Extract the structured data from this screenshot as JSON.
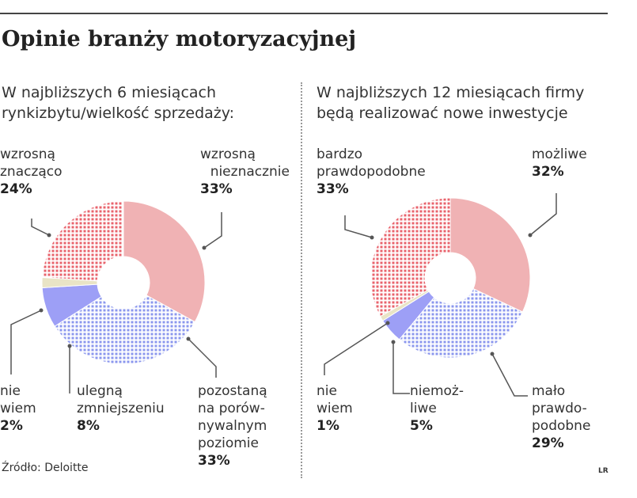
{
  "title": "Opinie branży motoryzacyjnej",
  "source": "Źródło: Deloitte",
  "credit": "LR",
  "colors": {
    "red": "#ee7b82",
    "pink": "#f0b2b4",
    "blue": "#9aa6f0",
    "blueSolid": "#9d9ff6",
    "cream": "#e9e4c6",
    "leader": "#555555"
  },
  "chart_data": [
    {
      "type": "pie",
      "subtitle": [
        "W najbliższych 6 miesiącach",
        "rynkizbytu/wielkość sprzedaży:"
      ],
      "labels": [
        {
          "lines": [
            "wzrosną",
            "znacząco"
          ],
          "value_label": "24%"
        },
        {
          "lines": [
            "wzrosną",
            "nieznacznie"
          ],
          "value_label": "33%"
        },
        {
          "lines": [
            "pozostaną",
            "na porów-",
            "nywalnym",
            "poziomie"
          ],
          "value_label": "33%"
        },
        {
          "lines": [
            "ulegną",
            "zmniejszeniu"
          ],
          "value_label": "8%"
        },
        {
          "lines": [
            "nie",
            "wiem"
          ],
          "value_label": "2%"
        }
      ],
      "values": [
        24,
        33,
        33,
        8,
        2
      ],
      "fills": [
        "dots-red",
        "pink",
        "dots-blue",
        "blueSolid",
        "cream"
      ]
    },
    {
      "type": "pie",
      "subtitle": [
        "W najbliższych 12 miesiącach firmy",
        "będą realizować nowe inwestycje"
      ],
      "labels": [
        {
          "lines": [
            "bardzo",
            "prawdopodobne"
          ],
          "value_label": "33%"
        },
        {
          "lines": [
            "możliwe"
          ],
          "value_label": "32%"
        },
        {
          "lines": [
            "mało",
            "prawdo-",
            "podobne"
          ],
          "value_label": "29%"
        },
        {
          "lines": [
            "niemoż-",
            "liwe"
          ],
          "value_label": "5%"
        },
        {
          "lines": [
            "nie",
            "wiem"
          ],
          "value_label": "1%"
        }
      ],
      "values": [
        33,
        32,
        29,
        5,
        1
      ],
      "fills": [
        "dots-red",
        "pink",
        "dots-blue",
        "blueSolid",
        "cream"
      ]
    }
  ]
}
